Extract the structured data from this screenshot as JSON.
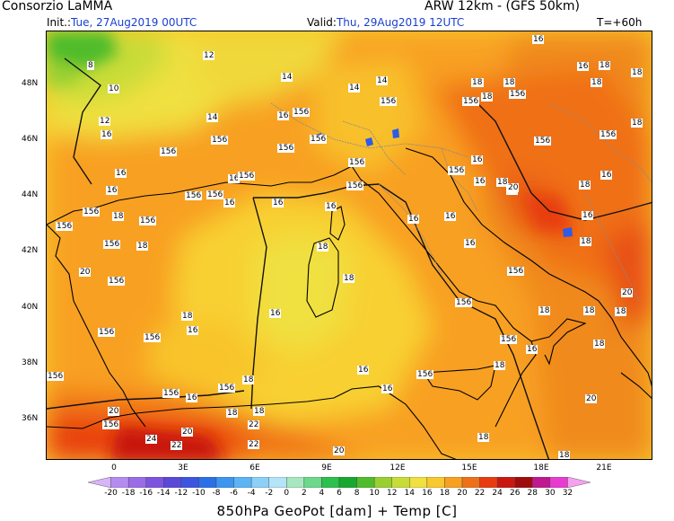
{
  "header": {
    "source": "Consorzio LaMMA",
    "model": "ARW 12km - (GFS 50km)",
    "init_label": "Init.:",
    "init_value": "Tue, 27Aug2019 00UTC",
    "valid_label": "Valid:",
    "valid_value": "Thu, 29Aug2019 12UTC",
    "forecast_step": "T=+60h"
  },
  "axes": {
    "lat_labels": [
      "48N",
      "46N",
      "44N",
      "42N",
      "40N",
      "38N",
      "36N"
    ],
    "lon_labels": [
      "0",
      "3E",
      "6E",
      "9E",
      "12E",
      "15E",
      "18E",
      "21E"
    ]
  },
  "colorbar": {
    "labels": [
      "-20",
      "-18",
      "-16",
      "-14",
      "-12",
      "-10",
      "-8",
      "-6",
      "-4",
      "-2",
      "0",
      "2",
      "4",
      "6",
      "8",
      "10",
      "12",
      "14",
      "16",
      "18",
      "20",
      "22",
      "24",
      "26",
      "28",
      "30",
      "32"
    ],
    "colors": [
      "#d8b4f8",
      "#b48cf0",
      "#9a6ce8",
      "#7c54e0",
      "#5b48d8",
      "#3c55e0",
      "#2c70e8",
      "#3c96f0",
      "#5cb4f4",
      "#8cd0f8",
      "#b4e4f8",
      "#a8e8c0",
      "#6cd88c",
      "#2cc04c",
      "#18a830",
      "#50bc2c",
      "#98d030",
      "#c8dc38",
      "#f0e040",
      "#f8c82c",
      "#f8a020",
      "#f07018",
      "#e83c10",
      "#c81810",
      "#a00c0c",
      "#c01890",
      "#e83cd0",
      "#f8a0f0"
    ]
  },
  "title": "850hPa GeoPot [dam] + Temp [C]",
  "map_labels": [
    "8",
    "12",
    "10",
    "14",
    "12",
    "14",
    "14",
    "14",
    "156",
    "16",
    "156",
    "156",
    "156",
    "156",
    "156",
    "18",
    "18",
    "16",
    "16",
    "16",
    "16",
    "156",
    "156",
    "156",
    "18",
    "18",
    "156",
    "16",
    "156",
    "156",
    "156",
    "156",
    "156",
    "20",
    "18",
    "16",
    "16",
    "18",
    "18",
    "156",
    "156",
    "156",
    "18",
    "156",
    "16",
    "18",
    "18",
    "156",
    "16",
    "16",
    "16",
    "156",
    "18",
    "18",
    "156",
    "156",
    "156",
    "16",
    "18",
    "20",
    "20",
    "22",
    "22",
    "22",
    "24",
    "20",
    "20",
    "156",
    "18",
    "18",
    "16",
    "16",
    "18",
    "18",
    "18",
    "18",
    "18",
    "156",
    "16",
    "18",
    "18",
    "16",
    "18",
    "20",
    "20",
    "20",
    "156",
    "156",
    "156",
    "156",
    "18",
    "16",
    "156",
    "16",
    "16",
    "16",
    "16",
    "156",
    "16",
    "18",
    "18"
  ]
}
